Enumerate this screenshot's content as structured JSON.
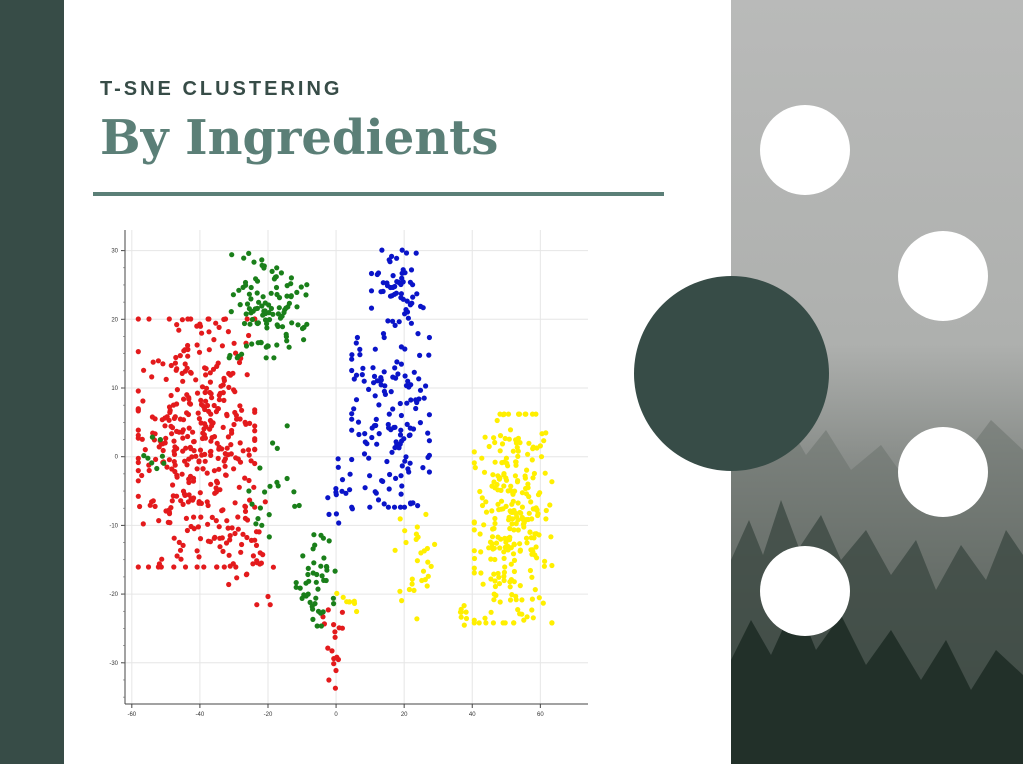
{
  "slide": {
    "subtitle": "T-SNE CLUSTERING",
    "title": "By Ingredients"
  },
  "colors": {
    "dark_green": "#374c47",
    "title_green": "#5b7f77",
    "fog_light": "#b9bab9",
    "forest_dark": "#223029"
  },
  "chart_data": {
    "type": "scatter",
    "title": "",
    "xlabel": "",
    "ylabel": "",
    "xlim": [
      -62,
      74
    ],
    "ylim": [
      -36,
      33
    ],
    "xticks": [
      -60,
      -40,
      -20,
      0,
      20,
      40,
      60
    ],
    "yticks": [
      -30,
      -20,
      -10,
      0,
      10,
      20,
      30
    ],
    "grid": true,
    "clusters": [
      {
        "color": "#e31a1c",
        "n": 380,
        "cx": -41,
        "cy": 2,
        "sx": 9,
        "sy": 9.5,
        "seed": 11
      },
      {
        "color": "#e31a1c",
        "n": 40,
        "cx": -26,
        "cy": -13,
        "sx": 4,
        "sy": 4.5,
        "seed": 12
      },
      {
        "color": "#e31a1c",
        "n": 18,
        "cx": -1,
        "cy": -28,
        "sx": 1.5,
        "sy": 3,
        "seed": 13
      },
      {
        "color": "#1a7f1a",
        "n": 110,
        "cx": -20,
        "cy": 22,
        "sx": 6,
        "sy": 4,
        "seed": 21
      },
      {
        "color": "#1a7f1a",
        "n": 45,
        "cx": -6,
        "cy": -18,
        "sx": 3,
        "sy": 3.5,
        "seed": 22
      },
      {
        "color": "#1a7f1a",
        "n": 20,
        "cx": -18,
        "cy": -5,
        "sx": 4,
        "sy": 5,
        "seed": 23
      },
      {
        "color": "#1a7f1a",
        "n": 8,
        "cx": -53,
        "cy": 0,
        "sx": 2,
        "sy": 1.5,
        "seed": 24
      },
      {
        "color": "#0a14c8",
        "n": 60,
        "cx": 18,
        "cy": 24,
        "sx": 4,
        "sy": 3.2,
        "seed": 31
      },
      {
        "color": "#0a14c8",
        "n": 140,
        "cx": 16,
        "cy": 5,
        "sx": 6,
        "sy": 6.5,
        "seed": 32
      },
      {
        "color": "#0a14c8",
        "n": 15,
        "cx": 1,
        "cy": -6,
        "sx": 2,
        "sy": 3,
        "seed": 33
      },
      {
        "color": "#ffef00",
        "n": 270,
        "cx": 52,
        "cy": -9,
        "sx": 6,
        "sy": 8,
        "seed": 41
      },
      {
        "color": "#ffef00",
        "n": 28,
        "cx": 24,
        "cy": -16,
        "sx": 3.5,
        "sy": 4,
        "seed": 42
      },
      {
        "color": "#ffef00",
        "n": 8,
        "cx": 37,
        "cy": -23,
        "sx": 1.2,
        "sy": 0.8,
        "seed": 43
      },
      {
        "color": "#ffef00",
        "n": 8,
        "cx": 4,
        "cy": -21,
        "sx": 2,
        "sy": 1,
        "seed": 44
      }
    ]
  }
}
